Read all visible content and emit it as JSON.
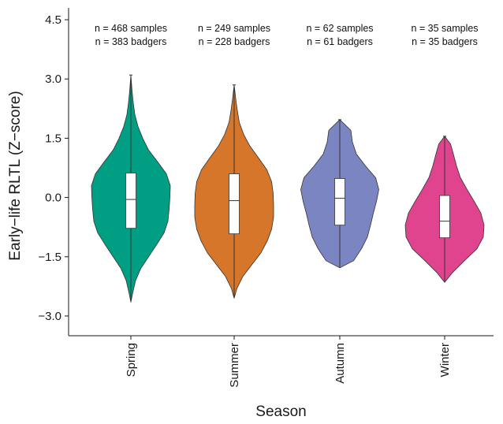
{
  "chart_data": {
    "type": "violin",
    "xlabel": "Season",
    "ylabel": "Early−life RLTL (Z−score)",
    "ylim": [
      -3.5,
      4.8
    ],
    "yticks": [
      "4.5",
      "3.0",
      "1.5",
      "0.0",
      "−1.5",
      "−3.0"
    ],
    "ytick_values": [
      4.5,
      3.0,
      1.5,
      0.0,
      -1.5,
      -3.0
    ],
    "categories": [
      "Spring",
      "Summer",
      "Autumn",
      "Winter"
    ],
    "colors": [
      "#009E82",
      "#D5762A",
      "#7A85C1",
      "#E0448E"
    ],
    "annotations": [
      {
        "samples": "n = 468 samples",
        "badgers": "n = 383 badgers"
      },
      {
        "samples": "n = 249 samples",
        "badgers": "n = 228 badgers"
      },
      {
        "samples": "n = 62 samples",
        "badgers": "n = 61 badgers"
      },
      {
        "samples": "n = 35 samples",
        "badgers": "n = 35 badgers"
      }
    ],
    "boxplots": [
      {
        "min": -2.65,
        "q1": -0.78,
        "median": -0.05,
        "q3": 0.62,
        "max": 3.1,
        "whisker_high": 2.65
      },
      {
        "min": -2.55,
        "q1": -0.92,
        "median": -0.08,
        "q3": 0.6,
        "max": 2.85,
        "whisker_high": 2.85
      },
      {
        "min": -1.78,
        "q1": -0.7,
        "median": -0.02,
        "q3": 0.48,
        "max": 1.97,
        "whisker_high": 1.97
      },
      {
        "min": -2.15,
        "q1": -1.02,
        "median": -0.6,
        "q3": 0.05,
        "max": 1.55,
        "whisker_high": 1.55
      }
    ],
    "densities": [
      [
        [
          -2.65,
          0.0
        ],
        [
          -2.4,
          0.05
        ],
        [
          -2.1,
          0.12
        ],
        [
          -1.8,
          0.25
        ],
        [
          -1.5,
          0.45
        ],
        [
          -1.2,
          0.65
        ],
        [
          -0.9,
          0.84
        ],
        [
          -0.6,
          0.94
        ],
        [
          -0.3,
          0.97
        ],
        [
          0.0,
          0.99
        ],
        [
          0.3,
          1.0
        ],
        [
          0.6,
          0.9
        ],
        [
          0.9,
          0.68
        ],
        [
          1.2,
          0.45
        ],
        [
          1.5,
          0.3
        ],
        [
          1.8,
          0.18
        ],
        [
          2.1,
          0.1
        ],
        [
          2.4,
          0.06
        ],
        [
          2.7,
          0.03
        ],
        [
          3.1,
          0.0
        ]
      ],
      [
        [
          -2.55,
          0.0
        ],
        [
          -2.3,
          0.07
        ],
        [
          -2.0,
          0.22
        ],
        [
          -1.7,
          0.45
        ],
        [
          -1.4,
          0.68
        ],
        [
          -1.1,
          0.84
        ],
        [
          -0.8,
          0.95
        ],
        [
          -0.5,
          1.0
        ],
        [
          -0.2,
          1.0
        ],
        [
          0.1,
          0.99
        ],
        [
          0.4,
          0.95
        ],
        [
          0.7,
          0.83
        ],
        [
          1.0,
          0.62
        ],
        [
          1.3,
          0.4
        ],
        [
          1.6,
          0.24
        ],
        [
          1.9,
          0.13
        ],
        [
          2.2,
          0.08
        ],
        [
          2.5,
          0.04
        ],
        [
          2.85,
          0.0
        ]
      ],
      [
        [
          -1.78,
          0.0
        ],
        [
          -1.6,
          0.35
        ],
        [
          -1.3,
          0.55
        ],
        [
          -1.0,
          0.7
        ],
        [
          -0.7,
          0.78
        ],
        [
          -0.4,
          0.85
        ],
        [
          -0.1,
          0.93
        ],
        [
          0.2,
          0.99
        ],
        [
          0.5,
          0.91
        ],
        [
          0.8,
          0.65
        ],
        [
          1.1,
          0.42
        ],
        [
          1.4,
          0.32
        ],
        [
          1.7,
          0.28
        ],
        [
          1.97,
          0.0
        ]
      ],
      [
        [
          -2.15,
          0.0
        ],
        [
          -1.9,
          0.2
        ],
        [
          -1.6,
          0.5
        ],
        [
          -1.3,
          0.82
        ],
        [
          -1.0,
          0.98
        ],
        [
          -0.7,
          1.0
        ],
        [
          -0.4,
          0.92
        ],
        [
          -0.1,
          0.75
        ],
        [
          0.2,
          0.57
        ],
        [
          0.5,
          0.4
        ],
        [
          0.8,
          0.3
        ],
        [
          1.1,
          0.22
        ],
        [
          1.35,
          0.15
        ],
        [
          1.55,
          0.0
        ]
      ]
    ]
  }
}
